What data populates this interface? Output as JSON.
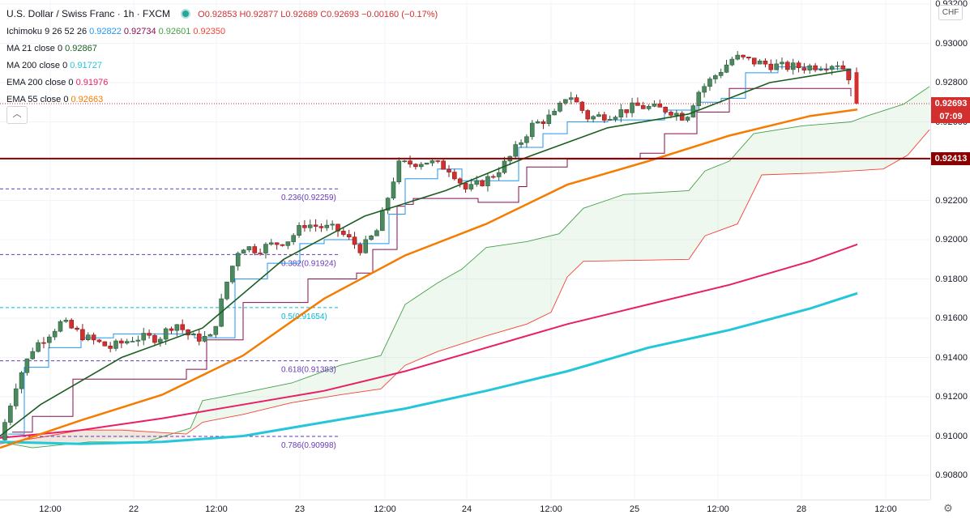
{
  "header": {
    "symbol": "U.S. Dollar / Swiss Franc · 1h · FXCM",
    "ohlc": "O0.92853 H0.92877 L0.92689 C0.92693 −0.00160 (−0.17%)"
  },
  "indicators": [
    {
      "label": "Ichimoku 9 26 52 26",
      "values": [
        {
          "text": "0.92822",
          "color": "#2196f3"
        },
        {
          "text": "0.92734",
          "color": "#880e4f"
        },
        {
          "text": "0.92601",
          "color": "#43a047"
        },
        {
          "text": "0.92350",
          "color": "#f44336"
        }
      ]
    },
    {
      "label": "MA 21 close 0",
      "values": [
        {
          "text": "0.92867",
          "color": "#1b5e20"
        }
      ]
    },
    {
      "label": "MA 200 close 0",
      "values": [
        {
          "text": "0.91727",
          "color": "#26c6da"
        }
      ]
    },
    {
      "label": "EMA 200 close 0",
      "values": [
        {
          "text": "0.91976",
          "color": "#e91e63"
        }
      ]
    },
    {
      "label": "EMA 55 close 0",
      "values": [
        {
          "text": "0.92663",
          "color": "#f57c00"
        }
      ]
    }
  ],
  "price_axis": {
    "currency": "CHF",
    "ticks": [
      "0.93200",
      "0.93000",
      "0.92800",
      "0.92600",
      "0.92400",
      "0.92200",
      "0.92000",
      "0.91800",
      "0.91600",
      "0.91400",
      "0.91200",
      "0.91000",
      "0.90800"
    ],
    "current_price": "0.92693",
    "countdown": "07:09",
    "level_price": "0.92413"
  },
  "time_axis": {
    "labels": [
      "12:00",
      "22",
      "12:00",
      "23",
      "12:00",
      "24",
      "12:00",
      "25",
      "12:00",
      "28",
      "12:00"
    ]
  },
  "fibonacci": [
    {
      "label": "0.236(0.92259)",
      "price": 0.92259,
      "color": "#673ab7"
    },
    {
      "label": "0.382(0.91924)",
      "price": 0.91924,
      "color": "#673ab7"
    },
    {
      "label": "0.5(0.91654)",
      "price": 0.91654,
      "color": "#00bcd4"
    },
    {
      "label": "0.618(0.91383)",
      "price": 0.91383,
      "color": "#673ab7"
    },
    {
      "label": "0.786(0.90998)",
      "price": 0.90998,
      "color": "#673ab7"
    }
  ],
  "colors": {
    "up": "#26a69a",
    "up_fill": "#4b8a5f",
    "down": "#d32f2f",
    "level": "#8b0000",
    "ema55": "#f57c00",
    "ema200": "#e91e63",
    "ma200": "#26c6da",
    "ma21": "#1b5e20"
  },
  "chart_data": {
    "type": "line",
    "series": [
      {
        "name": "MA 200 close 0",
        "x": [
          0,
          100,
          200,
          300,
          400,
          500,
          600,
          700,
          800,
          900,
          1000,
          1058
        ],
        "y": [
          0.9097,
          0.9096,
          0.9097,
          0.91,
          0.9107,
          0.9114,
          0.9123,
          0.9133,
          0.9145,
          0.9154,
          0.9165,
          0.91727
        ]
      },
      {
        "name": "EMA 200 close 0",
        "x": [
          0,
          100,
          200,
          300,
          400,
          500,
          600,
          700,
          800,
          900,
          1000,
          1058
        ],
        "y": [
          0.9099,
          0.9103,
          0.9109,
          0.9116,
          0.9123,
          0.9133,
          0.9145,
          0.9157,
          0.9167,
          0.9177,
          0.9189,
          0.91976
        ]
      },
      {
        "name": "EMA 55 close 0",
        "x": [
          0,
          100,
          200,
          300,
          400,
          500,
          600,
          700,
          800,
          900,
          1000,
          1058
        ],
        "y": [
          0.9094,
          0.9108,
          0.9121,
          0.9141,
          0.917,
          0.9192,
          0.9208,
          0.9228,
          0.924,
          0.9253,
          0.9263,
          0.92663
        ]
      },
      {
        "name": "MA 21 close 0",
        "x": [
          0,
          50,
          150,
          250,
          350,
          450,
          550,
          650,
          750,
          850,
          950,
          1050
        ],
        "y": [
          0.91,
          0.9116,
          0.914,
          0.9155,
          0.919,
          0.9212,
          0.9225,
          0.9242,
          0.9257,
          0.9264,
          0.928,
          0.92867
        ]
      }
    ],
    "ylim": [
      0.9072,
      0.9322
    ]
  }
}
